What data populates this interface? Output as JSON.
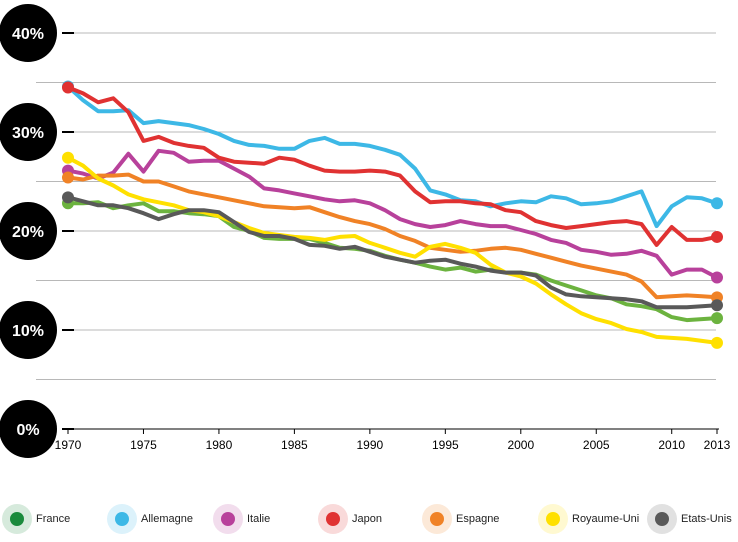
{
  "chart_data": {
    "type": "line",
    "title": "",
    "xlabel": "",
    "ylabel": "",
    "xlim": [
      1970,
      2013
    ],
    "ylim": [
      0,
      40
    ],
    "x_ticks": [
      1970,
      1975,
      1980,
      1985,
      1990,
      1995,
      2000,
      2005,
      2010,
      2013
    ],
    "y_ticks": [
      {
        "value": 0,
        "label": "0%"
      },
      {
        "value": 10,
        "label": "10%"
      },
      {
        "value": 20,
        "label": "20%"
      },
      {
        "value": 30,
        "label": "30%"
      },
      {
        "value": 40,
        "label": "40%"
      }
    ],
    "grid": true,
    "legend_position": "bottom",
    "x": [
      1970,
      1971,
      1972,
      1973,
      1974,
      1975,
      1976,
      1977,
      1978,
      1979,
      1980,
      1981,
      1982,
      1983,
      1984,
      1985,
      1986,
      1987,
      1988,
      1989,
      1990,
      1991,
      1992,
      1993,
      1994,
      1995,
      1996,
      1997,
      1998,
      1999,
      2000,
      2001,
      2002,
      2003,
      2004,
      2005,
      2006,
      2007,
      2008,
      2009,
      2010,
      2011,
      2012,
      2013
    ],
    "series": [
      {
        "name": "France",
        "color": "#6cb33f",
        "legend_color": "#1a8a3c",
        "values": [
          22.8,
          22.8,
          22.9,
          22.3,
          22.6,
          22.8,
          22.0,
          22.0,
          21.8,
          21.7,
          21.5,
          20.4,
          20.0,
          19.3,
          19.2,
          19.2,
          19.2,
          18.8,
          18.3,
          18.2,
          18.0,
          17.5,
          17.1,
          16.8,
          16.4,
          16.1,
          16.3,
          15.9,
          16.1,
          15.8,
          15.8,
          15.6,
          15.0,
          14.5,
          14.0,
          13.5,
          13.2,
          12.6,
          12.4,
          12.1,
          11.3,
          11.0,
          11.1,
          11.2
        ]
      },
      {
        "name": "Allemagne",
        "color": "#3db8e6",
        "legend_color": "#3db8e6",
        "values": [
          34.6,
          33.2,
          32.1,
          32.1,
          32.2,
          30.9,
          31.1,
          30.9,
          30.7,
          30.3,
          29.8,
          29.1,
          28.7,
          28.6,
          28.3,
          28.3,
          29.1,
          29.4,
          28.8,
          28.8,
          28.6,
          28.2,
          27.7,
          26.3,
          24.1,
          23.7,
          23.1,
          23.0,
          22.5,
          22.8,
          23.0,
          22.9,
          23.5,
          23.3,
          22.7,
          22.8,
          23.0,
          23.5,
          24.0,
          20.5,
          22.5,
          23.4,
          23.3,
          22.8
        ]
      },
      {
        "name": "Italie",
        "color": "#b8419b",
        "legend_color": "#b8419b",
        "values": [
          26.1,
          25.8,
          25.3,
          25.9,
          27.8,
          26.0,
          28.1,
          27.9,
          27.0,
          27.1,
          27.1,
          26.3,
          25.5,
          24.3,
          24.1,
          23.8,
          23.5,
          23.2,
          23.0,
          23.1,
          22.8,
          22.1,
          21.2,
          20.7,
          20.4,
          20.6,
          21.0,
          20.7,
          20.5,
          20.5,
          20.1,
          19.7,
          19.1,
          18.8,
          18.1,
          17.9,
          17.6,
          17.7,
          18.0,
          17.5,
          15.6,
          16.1,
          16.1,
          15.3
        ]
      },
      {
        "name": "Japon",
        "color": "#e03232",
        "legend_color": "#e03232",
        "values": [
          34.5,
          33.9,
          33.0,
          33.4,
          32.0,
          29.1,
          29.5,
          28.9,
          28.6,
          28.4,
          27.4,
          27.0,
          26.9,
          26.8,
          27.4,
          27.2,
          26.6,
          26.1,
          26.0,
          26.0,
          26.1,
          26.0,
          25.6,
          24.0,
          22.9,
          23.0,
          23.0,
          22.8,
          22.7,
          22.1,
          21.9,
          21.0,
          20.6,
          20.3,
          20.5,
          20.7,
          20.9,
          21.0,
          20.7,
          18.6,
          20.4,
          19.1,
          19.1,
          19.4
        ]
      },
      {
        "name": "Espagne",
        "color": "#f08226",
        "legend_color": "#f08226",
        "values": [
          25.4,
          25.2,
          25.6,
          25.6,
          25.7,
          25.0,
          25.0,
          24.5,
          24.0,
          23.7,
          23.4,
          23.1,
          22.8,
          22.5,
          22.4,
          22.3,
          22.4,
          21.9,
          21.4,
          21.0,
          20.7,
          20.2,
          19.5,
          19.0,
          18.3,
          18.1,
          17.9,
          18.0,
          18.2,
          18.3,
          18.1,
          17.7,
          17.3,
          16.9,
          16.5,
          16.2,
          15.9,
          15.6,
          14.9,
          13.3,
          13.4,
          13.5,
          13.4,
          13.3
        ]
      },
      {
        "name": "Royaume-Uni",
        "color": "#ffe000",
        "legend_color": "#ffe000",
        "values": [
          27.4,
          26.6,
          25.3,
          24.6,
          23.7,
          23.2,
          22.9,
          22.6,
          22.1,
          21.9,
          21.5,
          20.9,
          20.3,
          19.8,
          19.6,
          19.4,
          19.3,
          19.1,
          19.4,
          19.5,
          18.8,
          18.3,
          17.8,
          17.4,
          18.4,
          18.7,
          18.3,
          17.8,
          16.6,
          15.8,
          15.4,
          14.7,
          13.6,
          12.6,
          11.7,
          11.1,
          10.7,
          10.1,
          9.8,
          9.3,
          9.2,
          9.1,
          8.9,
          8.7
        ]
      },
      {
        "name": "Etats-Unis",
        "color": "#595959",
        "legend_color": "#595959",
        "values": [
          23.4,
          23.0,
          22.6,
          22.6,
          22.3,
          21.8,
          21.2,
          21.7,
          22.1,
          22.1,
          21.9,
          20.9,
          19.9,
          19.5,
          19.5,
          19.2,
          18.6,
          18.5,
          18.2,
          18.4,
          17.9,
          17.4,
          17.1,
          16.8,
          17.0,
          17.1,
          16.7,
          16.4,
          16.0,
          15.8,
          15.8,
          15.5,
          14.3,
          13.6,
          13.4,
          13.3,
          13.2,
          13.1,
          12.9,
          12.3,
          12.3,
          12.3,
          12.4,
          12.5
        ]
      }
    ]
  }
}
